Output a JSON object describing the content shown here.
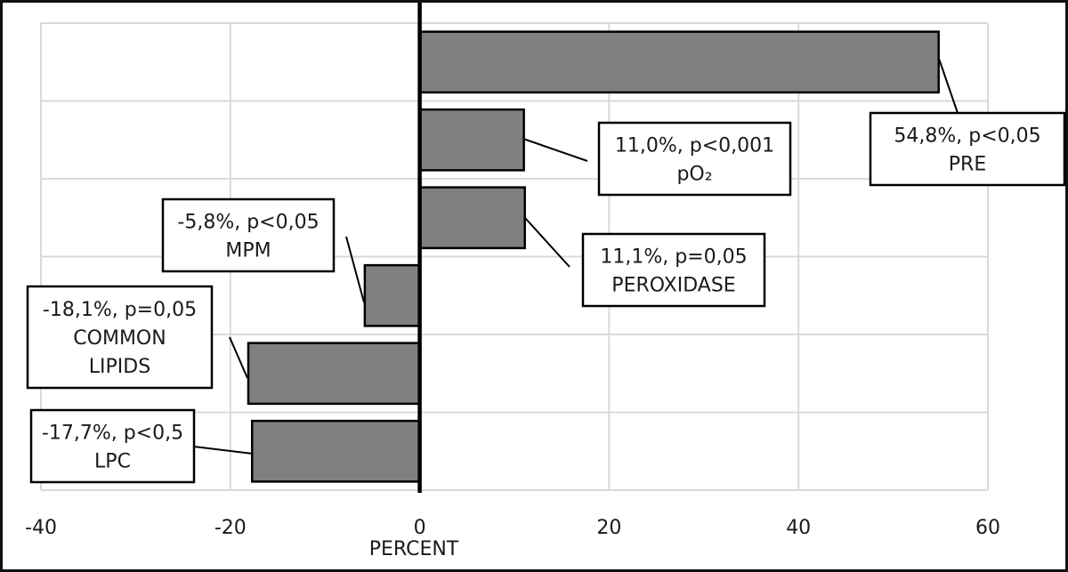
{
  "chart_data": {
    "type": "bar",
    "orientation": "horizontal",
    "title": "",
    "xlabel": "PERCENT",
    "ylabel": "",
    "xlim": [
      -40,
      60
    ],
    "xticks": [
      -40,
      -20,
      0,
      20,
      40,
      60
    ],
    "xtick_labels": [
      "-40",
      "-20",
      "0",
      "20",
      "40",
      "60"
    ],
    "grid": true,
    "legend": "none",
    "bar_color": "#808080",
    "categories": [
      "PRE",
      "pO2",
      "PEROXIDASE",
      "MPM",
      "COMMON LIPIDS",
      "LPC"
    ],
    "values": [
      54.8,
      11.0,
      11.1,
      -5.8,
      -18.1,
      -17.7
    ],
    "annotations": [
      {
        "lines": [
          "54,8%, p<0,05",
          "PRE"
        ]
      },
      {
        "lines": [
          "11,0%, p<0,001",
          "pO₂"
        ]
      },
      {
        "lines": [
          "11,1%, p=0,05",
          "PEROXIDASE"
        ]
      },
      {
        "lines": [
          "-5,8%, p<0,05",
          "MPM"
        ]
      },
      {
        "lines": [
          "-18,1%, p=0,05",
          "COMMON",
          "LIPIDS"
        ]
      },
      {
        "lines": [
          "-17,7%, p<0,5",
          "LPC"
        ]
      }
    ]
  }
}
